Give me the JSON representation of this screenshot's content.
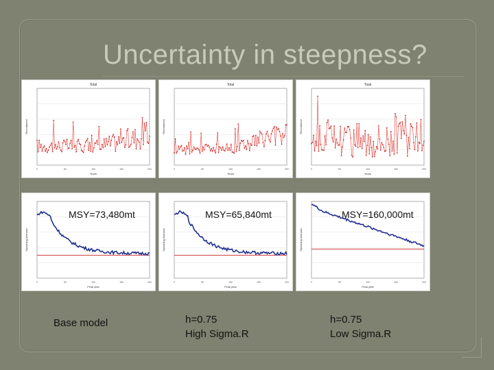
{
  "slide": {
    "title": "Uncertainty in steepness?",
    "background_color": "#7f8270",
    "title_color": "#c8cbb8"
  },
  "labels": {
    "msy": [
      "MSY=73,480mt",
      "MSY=65,840mt",
      "MSY=160,000mt"
    ],
    "models": [
      {
        "line1": "Base model",
        "line2": ""
      },
      {
        "line1": "h=0.75",
        "line2": "High Sigma.R"
      },
      {
        "line1": "h=0.75",
        "line2": "Low Sigma.R"
      }
    ]
  },
  "chart_data": [
    {
      "type": "line",
      "panel": "top-1",
      "title": "Total",
      "xlabel": "Years",
      "ylabel": "Recruitment",
      "color": "#e0403a",
      "series_shape": "recruitment-noisy",
      "xlim": [
        1,
        200
      ]
    },
    {
      "type": "line",
      "panel": "top-2",
      "title": "Total",
      "xlabel": "Years",
      "ylabel": "Recruitment",
      "color": "#e0403a",
      "series_shape": "recruitment-noisy-high",
      "xlim": [
        1,
        200
      ]
    },
    {
      "type": "line",
      "panel": "top-3",
      "title": "Total",
      "xlabel": "Years",
      "ylabel": "Recruitment",
      "color": "#e0403a",
      "series_shape": "recruitment-noisy-low",
      "xlim": [
        1,
        200
      ]
    },
    {
      "type": "line",
      "panel": "bottom-1",
      "xlabel": "Final year",
      "ylabel": "Spawning biomass",
      "line_color": "#1f2f8f",
      "ref_color": "#cc2222",
      "series_shape": "biomass-decline-steep",
      "xlim": [
        0,
        200
      ]
    },
    {
      "type": "line",
      "panel": "bottom-2",
      "xlabel": "Final year",
      "ylabel": "Spawning biomass",
      "line_color": "#1f2f8f",
      "ref_color": "#cc2222",
      "series_shape": "biomass-decline-steep",
      "xlim": [
        0,
        200
      ]
    },
    {
      "type": "line",
      "panel": "bottom-3",
      "xlabel": "Final year",
      "ylabel": "Spawning biomass",
      "line_color": "#1f2f8f",
      "ref_color": "#cc2222",
      "series_shape": "biomass-decline-gentle",
      "xlim": [
        0,
        200
      ]
    }
  ]
}
